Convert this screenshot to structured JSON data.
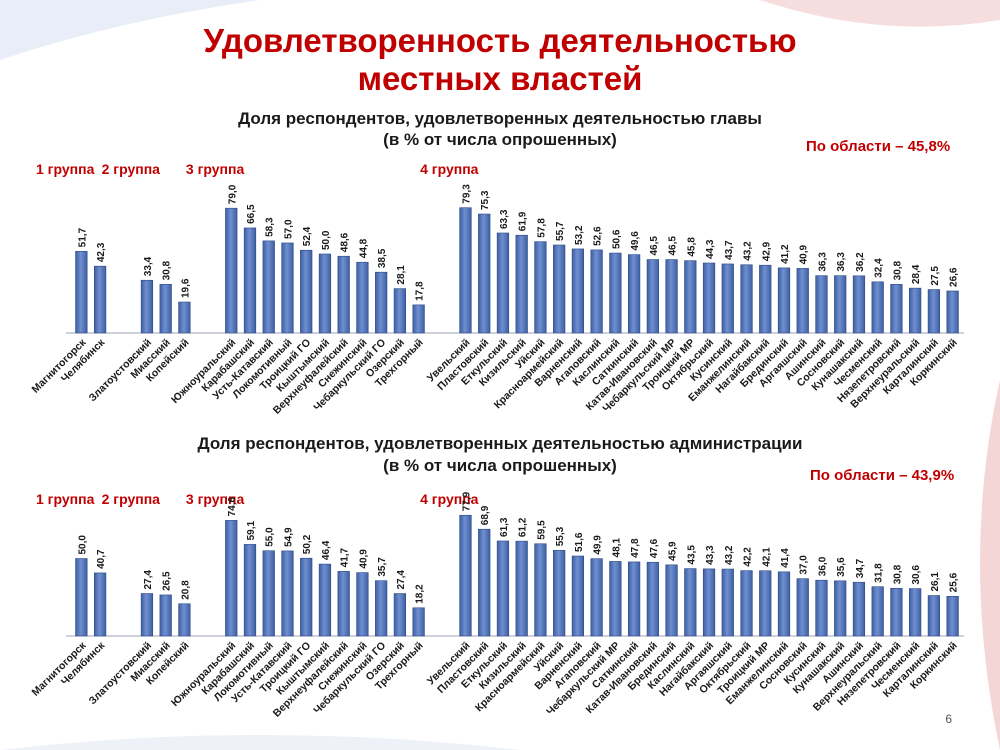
{
  "slide": {
    "title_line1": "Удовлетворенность деятельностью",
    "title_line2": "местных властей",
    "page_number": "6"
  },
  "colors": {
    "bar": "#3e5fa3",
    "bar_light": "#6f8fd0",
    "accent": "#c00000"
  },
  "chart_data": [
    {
      "type": "bar",
      "title_line1": "Доля респондентов, удовлетворенных деятельностью главы",
      "title_line2": "(в % от числа опрошенных)",
      "region_note": "По области – 45,8%",
      "ylim": [
        0,
        100
      ],
      "groups": [
        {
          "label": "1 группа",
          "categories": [
            "Магнитогорск",
            "Челябинск"
          ],
          "values": [
            51.7,
            42.3
          ]
        },
        {
          "label": "2 группа",
          "categories": [
            "Златоустовский",
            "Миасский",
            "Копейский"
          ],
          "values": [
            33.4,
            30.8,
            19.6
          ]
        },
        {
          "label": "3 группа",
          "categories": [
            "Южноуральский",
            "Карабашский",
            "Усть-Катавский",
            "Локомотивный",
            "Троицкий ГО",
            "Кыштымский",
            "Верхнеуфалейский",
            "Снежинский",
            "Чебаркульский ГО",
            "Озерский",
            "Трехгорный"
          ],
          "values": [
            79.0,
            66.5,
            58.3,
            57.0,
            52.4,
            50.0,
            48.6,
            44.8,
            38.5,
            28.1,
            17.8
          ]
        },
        {
          "label": "4 группа",
          "categories": [
            "Увельский",
            "Пластовский",
            "Еткульский",
            "Кизильский",
            "Уйский",
            "Красноармейский",
            "Варненский",
            "Агаповский",
            "Каслинский",
            "Саткинский",
            "Катав-Ивановский",
            "Чебаркульский МР",
            "Троицкий МР",
            "Октябрьский",
            "Кусинский",
            "Еманжелинский",
            "Нагайбакский",
            "Брединский",
            "Аргаяшский",
            "Ашинский",
            "Сосновский",
            "Кунашакский",
            "Чесменский",
            "Нязепетровский",
            "Верхнеуральский",
            "Карталинский",
            "Коркинский"
          ],
          "values": [
            79.3,
            75.3,
            63.3,
            61.9,
            57.8,
            55.7,
            53.2,
            52.6,
            50.6,
            49.6,
            46.5,
            46.5,
            45.8,
            44.3,
            43.7,
            43.2,
            42.9,
            41.2,
            40.9,
            36.3,
            36.3,
            36.2,
            32.4,
            30.8,
            28.4,
            27.5,
            26.6
          ]
        }
      ]
    },
    {
      "type": "bar",
      "title_line1": "Доля респондентов, удовлетворенных деятельностью администрации",
      "title_line2": "(в % от числа опрошенных)",
      "region_note": "По области – 43,9%",
      "ylim": [
        0,
        100
      ],
      "groups": [
        {
          "label": "1 группа",
          "categories": [
            "Магнитогорск",
            "Челябинск"
          ],
          "values": [
            50.0,
            40.7
          ]
        },
        {
          "label": "2 группа",
          "categories": [
            "Златоустовский",
            "Миасский",
            "Копейский"
          ],
          "values": [
            27.4,
            26.5,
            20.8
          ]
        },
        {
          "label": "3 группа",
          "categories": [
            "Южноуральский",
            "Карабашский",
            "Локомотивный",
            "Усть-Катавский",
            "Троицкий ГО",
            "Кыштымский",
            "Верхнеуфалейский",
            "Снежинский",
            "Чебаркульский ГО",
            "Озерский",
            "Трехгорный"
          ],
          "values": [
            74.6,
            59.1,
            55.0,
            54.9,
            50.2,
            46.4,
            41.7,
            40.9,
            35.7,
            27.4,
            18.2
          ]
        },
        {
          "label": "4 группа",
          "categories": [
            "Увельский",
            "Пластовский",
            "Еткульский",
            "Кизильский",
            "Красноармейский",
            "Уйский",
            "Варненский",
            "Агаповский",
            "Чебаркульский МР",
            "Саткинский",
            "Катав-Ивановский",
            "Брединский",
            "Каслинский",
            "Нагайбакский",
            "Аргаяшский",
            "Октябрьский",
            "Троицкий МР",
            "Еманжелинский",
            "Сосновский",
            "Кусинский",
            "Кунашакский",
            "Ашинский",
            "Верхнеуральский",
            "Нязепетровский",
            "Чесменский",
            "Карталинский",
            "Коркинский"
          ],
          "values": [
            77.9,
            68.9,
            61.3,
            61.2,
            59.5,
            55.3,
            51.6,
            49.9,
            48.1,
            47.8,
            47.6,
            45.9,
            43.5,
            43.3,
            43.2,
            42.2,
            42.1,
            41.4,
            37.0,
            36.0,
            35.6,
            34.7,
            31.8,
            30.8,
            30.6,
            26.1,
            25.6
          ]
        }
      ]
    }
  ]
}
